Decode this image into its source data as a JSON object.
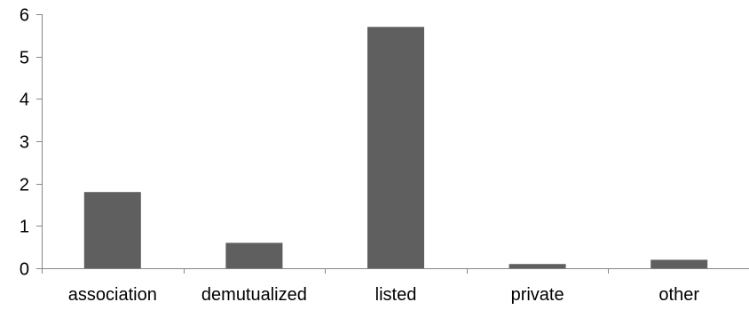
{
  "chart_data": {
    "type": "bar",
    "title": "",
    "xlabel": "",
    "ylabel": "",
    "categories": [
      "association",
      "demutualized",
      "listed",
      "private",
      "other"
    ],
    "values": [
      1.8,
      0.6,
      5.7,
      0.1,
      0.2
    ],
    "ylim": [
      0,
      6
    ],
    "yticks": [
      0,
      1,
      2,
      3,
      4,
      5,
      6
    ],
    "ytick_labels": [
      "0",
      "1",
      "2",
      "3",
      "4",
      "5",
      "6"
    ],
    "grid": false,
    "legend": "none",
    "bar_color": "#5f5f5f",
    "axis_color": "#868686"
  }
}
